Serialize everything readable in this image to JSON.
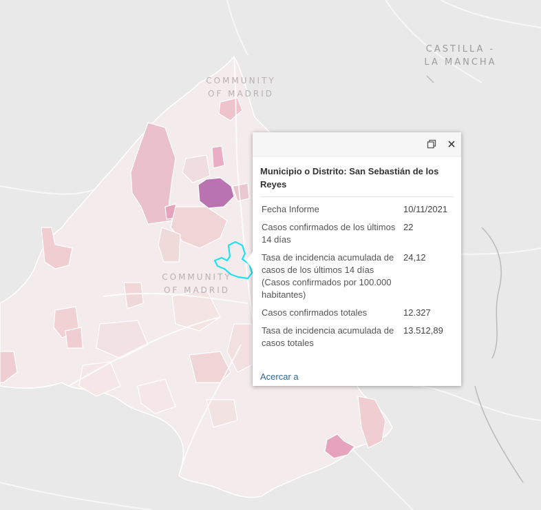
{
  "map": {
    "labels": {
      "castilla_line1": "CASTILLA -",
      "castilla_line2": "LA MANCHA",
      "community_top_line1": "COMMUNITY",
      "community_top_line2": "OF MADRID",
      "community_mid_line1": "COMMUNITY",
      "community_mid_line2": "OF MADRID"
    },
    "colors": {
      "base": "#e9e9ea",
      "region_fill": "#f4ecec",
      "low": "#efdcdc",
      "mid": "#eec3cc",
      "high": "#e6a4bc",
      "max": "#b873b0",
      "selected_outline": "#22e0f0"
    }
  },
  "popup": {
    "title": "Municipio o Distrito: San Sebastián de los Reyes",
    "maximize_icon": "maximize-icon",
    "close_icon": "close-icon",
    "fields": [
      {
        "label": "Fecha Informe",
        "value": "10/11/2021"
      },
      {
        "label": "Casos confirmados de los últimos 14 días",
        "value": "22"
      },
      {
        "label": "Tasa de incidencia acumulada de casos de los últimos 14 días (Casos confirmados por 100.000 habitantes)",
        "value": "24,12"
      },
      {
        "label": "Casos confirmados totales",
        "value": "12.327"
      },
      {
        "label": "Tasa de incidencia acumulada de casos totales",
        "value": "13.512,89"
      }
    ],
    "zoom_link": "Acercar a"
  }
}
